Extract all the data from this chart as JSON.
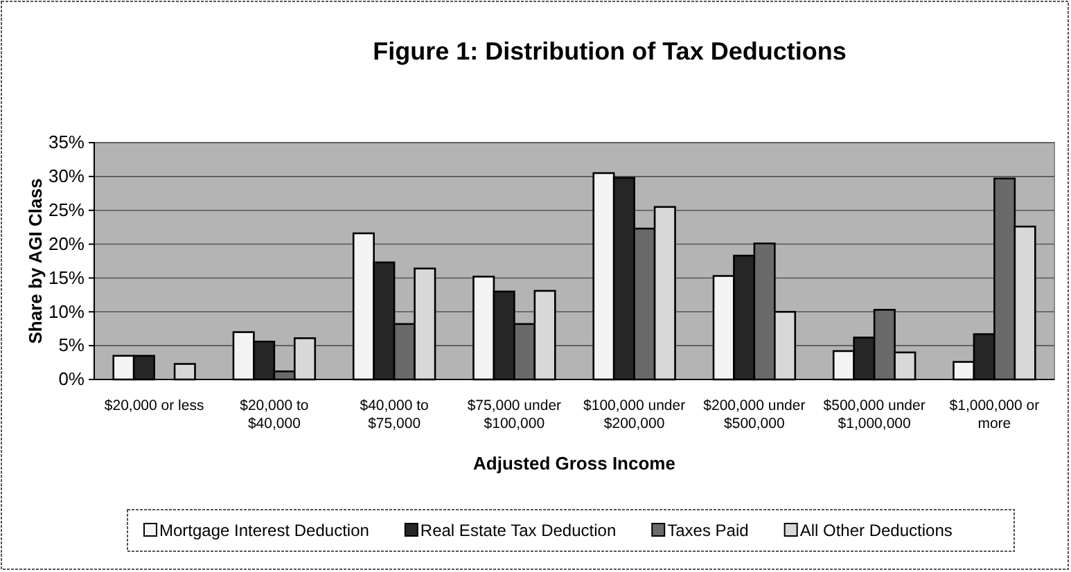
{
  "chart_data": {
    "type": "bar",
    "title": "Figure 1: Distribution of Tax Deductions",
    "xlabel": "Adjusted Gross Income",
    "ylabel": "Share by AGI Class",
    "categories": [
      "$20,000 or less",
      "$20,000 to $40,000",
      "$40,000 to $75,000",
      "$75,000 under $100,000",
      "$100,000 under $200,000",
      "$200,000 under $500,000",
      "$500,000 under $1,000,000",
      "$1,000,000 or more"
    ],
    "series": [
      {
        "name": "Mortgage Interest Deduction",
        "color": "#f4f4f4",
        "values": [
          3.5,
          7.0,
          21.6,
          15.2,
          30.5,
          15.3,
          4.2,
          2.6
        ]
      },
      {
        "name": "Real Estate Tax Deduction",
        "color": "#262626",
        "values": [
          3.5,
          5.6,
          17.3,
          13.0,
          29.8,
          18.3,
          6.2,
          6.7
        ]
      },
      {
        "name": "Taxes Paid",
        "color": "#6a6a6a",
        "values": [
          null,
          1.2,
          8.2,
          8.2,
          22.3,
          20.1,
          10.3,
          29.7
        ]
      },
      {
        "name": "All Other Deductions",
        "color": "#d8d8d8",
        "values": [
          2.3,
          6.1,
          16.4,
          13.1,
          25.5,
          10.0,
          4.0,
          22.6
        ]
      }
    ],
    "ylim": [
      0,
      35
    ],
    "yticks": [
      {
        "value": 0,
        "label": "0%"
      },
      {
        "value": 5,
        "label": "5%"
      },
      {
        "value": 10,
        "label": "10%"
      },
      {
        "value": 15,
        "label": "15%"
      },
      {
        "value": 20,
        "label": "20%"
      },
      {
        "value": 25,
        "label": "25%"
      },
      {
        "value": 30,
        "label": "30%"
      },
      {
        "value": 35,
        "label": "35%"
      }
    ],
    "grid": "y",
    "legend": "bottom"
  }
}
